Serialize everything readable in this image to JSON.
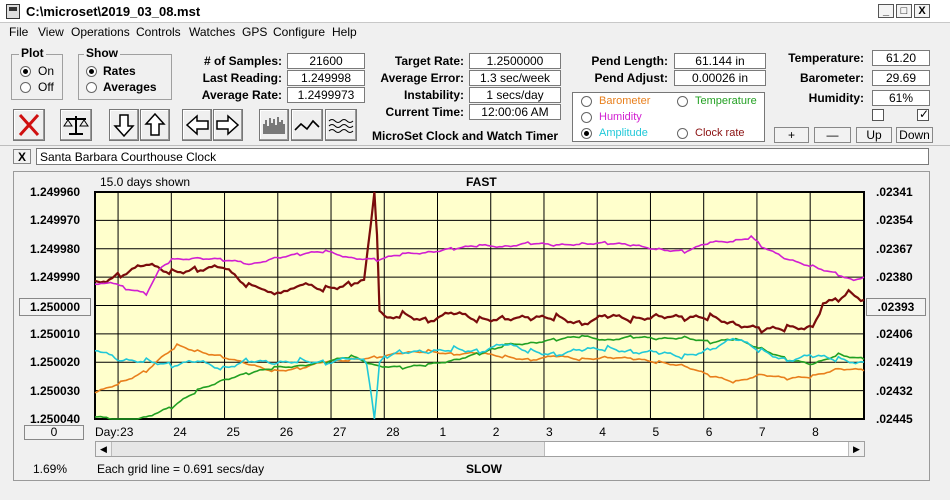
{
  "window": {
    "title": "C:\\microset\\2019_03_08.mst",
    "min_glyph": "_",
    "max_glyph": "□",
    "close_glyph": "X"
  },
  "menu": [
    "File",
    "View",
    "Operations",
    "Controls",
    "Watches",
    "GPS",
    "Configure",
    "Help"
  ],
  "plot_group": {
    "title": "Plot",
    "on": "On",
    "off": "Off",
    "selected": "On"
  },
  "show_group": {
    "title": "Show",
    "rates": "Rates",
    "averages": "Averages",
    "selected": "Rates"
  },
  "stats": {
    "samples_label": "# of Samples:",
    "samples": "21600",
    "last_label": "Last Reading:",
    "last": "1.249998",
    "avg_label": "Average Rate:",
    "avg": "1.2499973"
  },
  "rates": {
    "target_label": "Target Rate:",
    "target": "1.2500000",
    "error_label": "Average Error:",
    "error": "1.3 sec/week",
    "instab_label": "Instability:",
    "instab": "1 secs/day",
    "time_label": "Current Time:",
    "time": "12:00:06 AM"
  },
  "app_caption": "MicroSet Clock and Watch Timer",
  "pend": {
    "length_label": "Pend Length:",
    "length": "61.144 in",
    "adjust_label": "Pend Adjust:",
    "adjust": "0.00026 in"
  },
  "channels": [
    {
      "label": "Barometer",
      "color": "#e87f1c",
      "selected": false
    },
    {
      "label": "Temperature",
      "color": "#22a022",
      "selected": false
    },
    {
      "label": "Humidity",
      "color": "#d11fd1",
      "selected": false
    },
    {
      "label": "Amplitude",
      "color": "#20c8d8",
      "selected": true
    },
    {
      "label": "Clock rate",
      "color": "#8a1010",
      "selected": false
    }
  ],
  "env": {
    "temp_label": "Temperature:",
    "temp": "61.20",
    "baro_label": "Barometer:",
    "baro": "29.69",
    "hum_label": "Humidity:",
    "hum": "61%"
  },
  "step_buttons": {
    "plus": "+",
    "minus": "—",
    "up": "Up",
    "down": "Down"
  },
  "clock_name": "Santa Barbara Courthouse Clock",
  "clear_glyph": "X",
  "chart_data": {
    "type": "line",
    "top_label": "FAST",
    "bottom_label": "SLOW",
    "days_shown": "15.0 days shown",
    "grid_note": "Each grid line = 0.691 secs/day",
    "percent": "1.69%",
    "left_ticks": [
      "1.249960",
      "1.249970",
      "1.249980",
      "1.249990",
      "1.250000",
      "1.250010",
      "1.250020",
      "1.250030",
      "1.250040"
    ],
    "right_ticks": [
      ".02341",
      ".02354",
      ".02367",
      ".02380",
      ".02393",
      ".02406",
      ".02419",
      ".02432",
      ".02445"
    ],
    "left_center_button": "1.250000",
    "right_center_button": ".02393",
    "left_bottom_button": "0",
    "x_label": "Day:",
    "x_ticks": [
      "23",
      "24",
      "25",
      "26",
      "27",
      "28",
      "1",
      "2",
      "3",
      "4",
      "5",
      "6",
      "7",
      "8"
    ],
    "ylim": [
      1.24996,
      1.25004
    ],
    "series": [
      {
        "color": "#7a0c0c",
        "x": [
          0,
          0.5,
          1,
          1.5,
          2,
          2.5,
          3,
          3.25,
          3.5,
          3.75,
          4,
          4.5,
          5,
          5.25,
          5.45,
          5.5,
          5.55,
          5.7,
          6,
          6.5,
          7,
          7.5,
          8,
          8.5,
          9,
          9.5,
          10,
          10.5,
          11,
          11.5,
          12,
          12.5,
          13,
          13.5,
          14,
          14.2,
          14.5,
          14.7,
          15
        ],
        "y": [
          1.249992,
          1.249989,
          1.249986,
          1.249988,
          1.249987,
          1.249987,
          1.249993,
          1.249994,
          1.249995,
          1.249994,
          1.249993,
          1.249994,
          1.249992,
          1.24999,
          1.24996,
          1.249975,
          1.250001,
          1.250004,
          1.250003,
          1.250005,
          1.250003,
          1.250005,
          1.250004,
          1.250005,
          1.250004,
          1.250006,
          1.250004,
          1.250005,
          1.250003,
          1.250005,
          1.250004,
          1.250006,
          1.250009,
          1.250008,
          1.250007,
          1.25,
          1.249998,
          1.249995,
          1.249998
        ]
      },
      {
        "color": "#d11fd1",
        "x": [
          0,
          0.3,
          0.6,
          1,
          1.3,
          1.5,
          2,
          2.5,
          2.9,
          3,
          3.5,
          4,
          4.5,
          5,
          5.5,
          6,
          6.5,
          7,
          7.5,
          8,
          8.5,
          9,
          9.5,
          10,
          10.5,
          11,
          11.5,
          12,
          12.5,
          12.8,
          13,
          13.5,
          14,
          14.5,
          14.8,
          15
        ],
        "y": [
          1.249993,
          1.249992,
          1.249994,
          1.249996,
          1.249986,
          1.249984,
          1.249983,
          1.249984,
          1.249985,
          1.249986,
          1.249983,
          1.249982,
          1.249981,
          1.249983,
          1.249984,
          1.249982,
          1.249981,
          1.24998,
          1.249979,
          1.249979,
          1.249978,
          1.249979,
          1.249978,
          1.249978,
          1.249979,
          1.24998,
          1.249981,
          1.249978,
          1.249977,
          1.249976,
          1.249979,
          1.249984,
          1.249986,
          1.249989,
          1.249991,
          1.24999
        ]
      },
      {
        "color": "#e87f1c",
        "x": [
          0,
          0.5,
          1,
          1.3,
          1.6,
          2,
          2.5,
          3,
          3.5,
          4,
          4.5,
          5,
          5.5,
          6,
          6.5,
          7,
          7.5,
          8,
          8.5,
          9,
          9.5,
          10,
          10.5,
          11,
          11.5,
          12,
          12.5,
          13,
          13.5,
          14,
          14.5,
          15
        ],
        "y": [
          1.250031,
          1.250027,
          1.250023,
          1.250018,
          1.250014,
          1.250016,
          1.250018,
          1.250021,
          1.250023,
          1.250022,
          1.25002,
          1.250019,
          1.250018,
          1.250017,
          1.250016,
          1.250017,
          1.250017,
          1.250018,
          1.250019,
          1.250018,
          1.250019,
          1.250018,
          1.250019,
          1.25002,
          1.250021,
          1.250025,
          1.250027,
          1.250024,
          1.250026,
          1.250025,
          1.250022,
          1.250023
        ]
      },
      {
        "color": "#22a022",
        "x": [
          0,
          0.5,
          1,
          1.5,
          2,
          2.5,
          3,
          3.5,
          4,
          4.5,
          5,
          5.5,
          6,
          6.5,
          7,
          7.5,
          7.8,
          8,
          8.5,
          9,
          9.5,
          10,
          10.5,
          11,
          11.5,
          12,
          12.5,
          13,
          13.5,
          14,
          14.5,
          15
        ],
        "y": [
          1.250039,
          1.250041,
          1.250039,
          1.250036,
          1.25003,
          1.250026,
          1.250024,
          1.250022,
          1.250021,
          1.25002,
          1.250018,
          1.250021,
          1.250022,
          1.250021,
          1.250019,
          1.250017,
          1.250015,
          1.250014,
          1.250013,
          1.250012,
          1.250011,
          1.250012,
          1.250011,
          1.250012,
          1.250011,
          1.250013,
          1.250012,
          1.250015,
          1.250019,
          1.250021,
          1.250017,
          1.250019
        ]
      },
      {
        "color": "#20c8d8",
        "x": [
          0,
          0.5,
          1,
          1.5,
          2,
          2.5,
          3,
          3.5,
          4,
          4.5,
          5,
          5.3,
          5.45,
          5.55,
          5.7,
          6,
          6.5,
          7,
          7.5,
          8,
          8.5,
          9,
          9.5,
          10,
          10.5,
          11,
          11.5,
          12,
          12.5,
          13,
          13.5,
          14,
          14.5,
          15
        ],
        "y": [
          1.250015,
          1.25002,
          1.250019,
          1.250021,
          1.25002,
          1.250022,
          1.250019,
          1.250021,
          1.250019,
          1.25002,
          1.250019,
          1.25002,
          1.25004,
          1.25002,
          1.250018,
          1.250016,
          1.250017,
          1.250015,
          1.250016,
          1.250014,
          1.250016,
          1.250017,
          1.250016,
          1.250015,
          1.250016,
          1.250017,
          1.250018,
          1.250015,
          1.250012,
          1.250016,
          1.250019,
          1.250018,
          1.250019,
          1.25002
        ]
      }
    ]
  }
}
